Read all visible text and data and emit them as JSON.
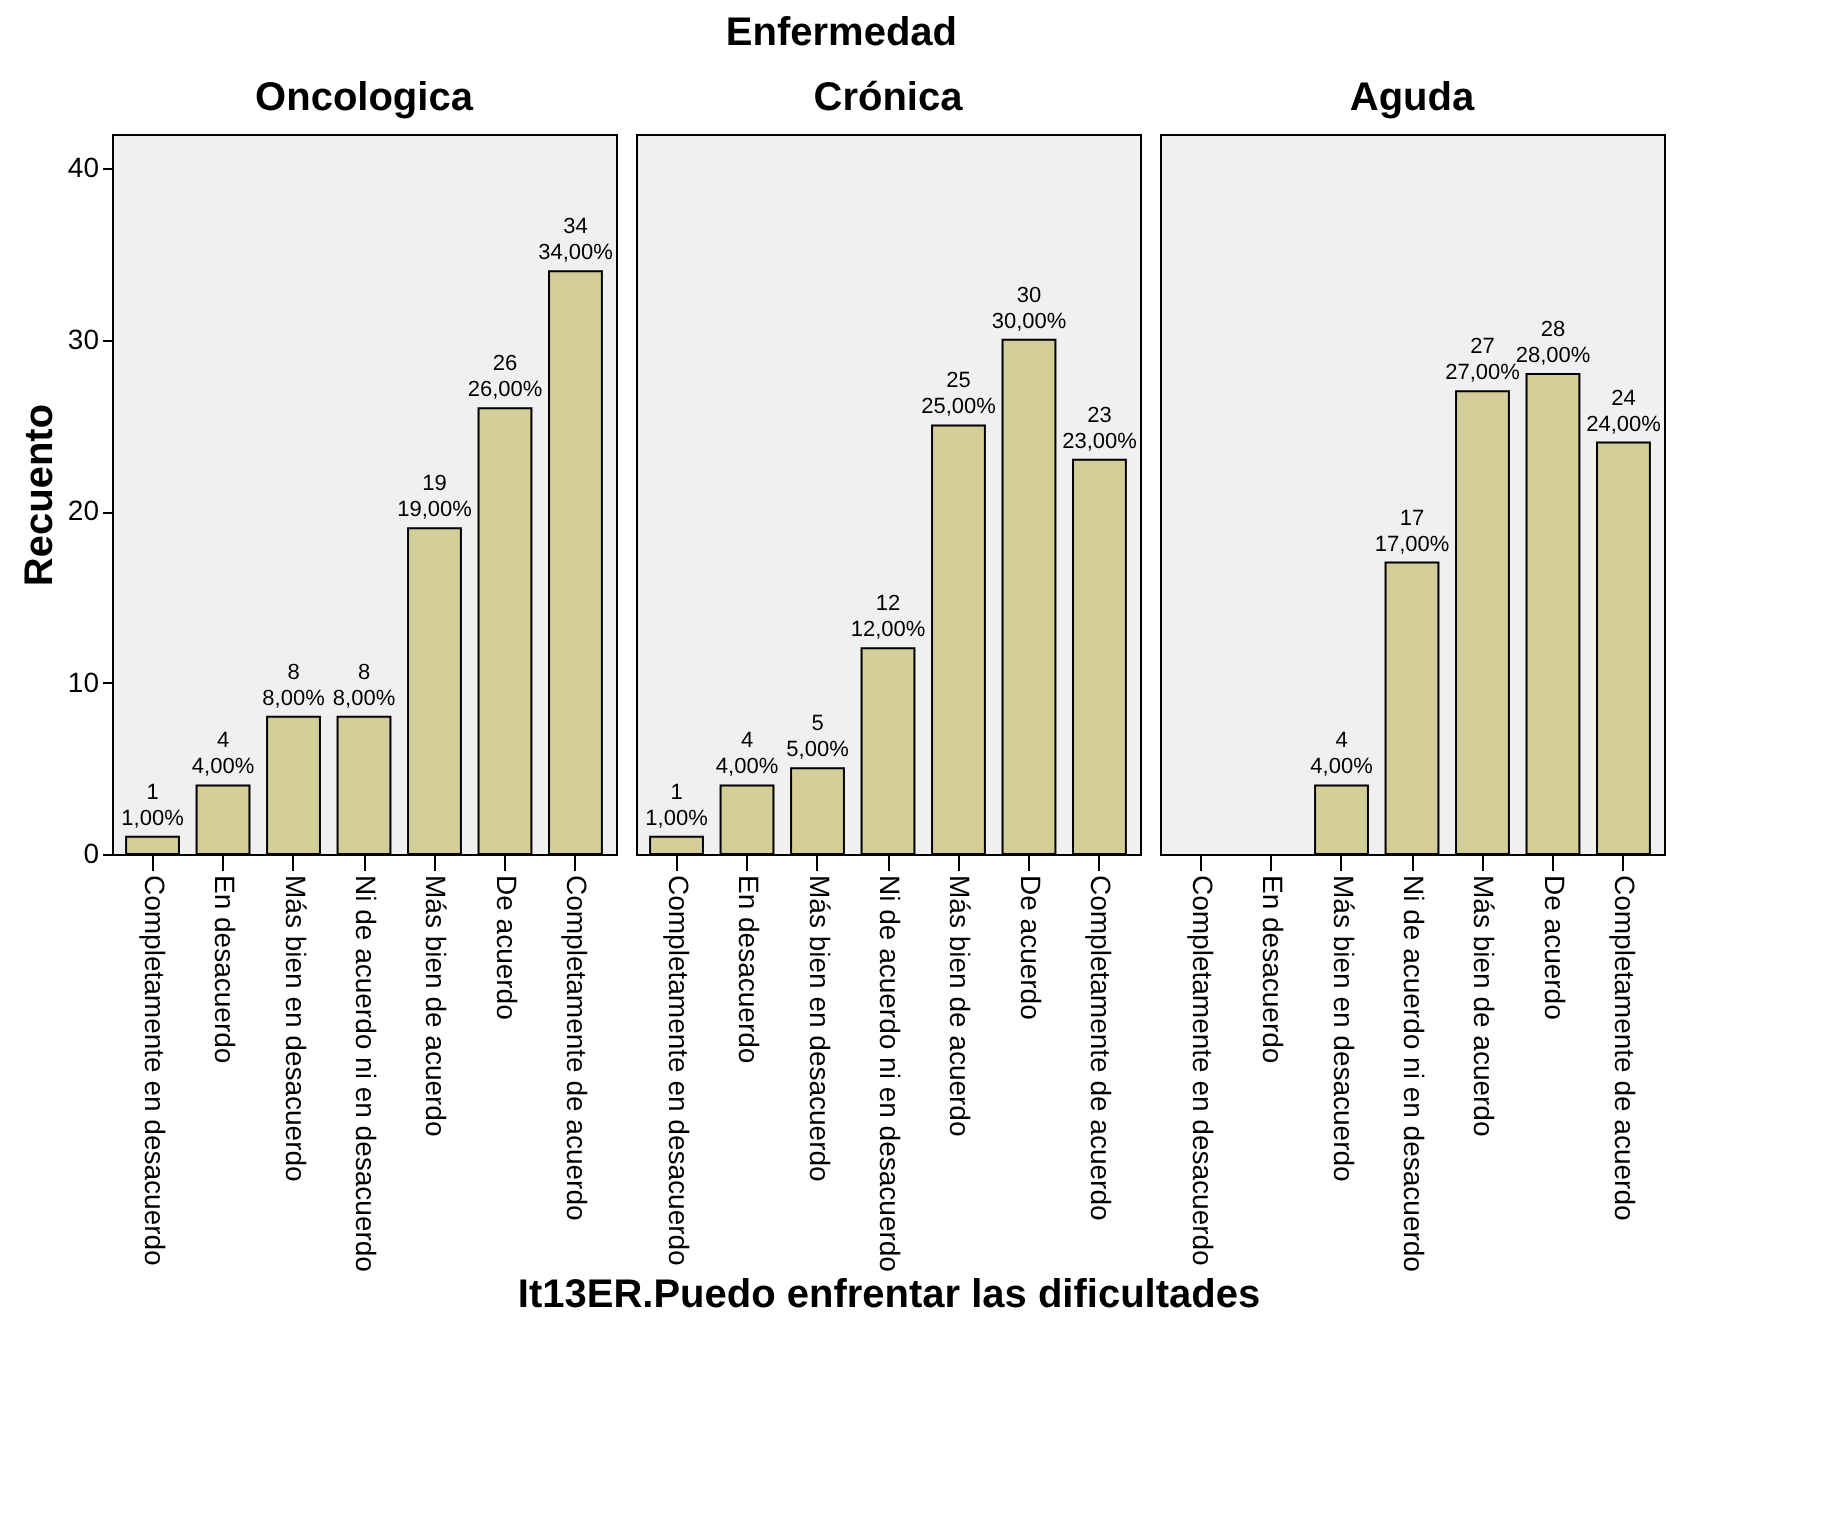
{
  "chart_data": [
    {
      "type": "bar",
      "title": "Oncologica",
      "ylabel": "Recuento",
      "categories": [
        "Completamente en desacuerdo",
        "En desacuerdo",
        "Más bien en desacuerdo",
        "Ni de acuerdo ni en desacuerdo",
        "Más bien de acuerdo",
        "De acuerdo",
        "Completamente de acuerdo"
      ],
      "values": [
        1,
        4,
        8,
        8,
        19,
        26,
        34
      ],
      "color": "#d3ce97",
      "value_labels": [
        "1 1,00%",
        "4 4,00%",
        "8 8,00%",
        "8 8,00%",
        "19 19,00%",
        "26 26,00%",
        "34 34,00%"
      ],
      "ylim": [
        0,
        42
      ],
      "yticks": [
        0,
        10,
        20,
        30,
        40
      ],
      "grid": false
    },
    {
      "type": "bar",
      "title": "Crónica",
      "xlabel": "It13ER.Puedo  enfrentar  las  dificultades",
      "annotations": [
        "Enfermedad"
      ],
      "categories": [
        "Completamente en desacuerdo",
        "En desacuerdo",
        "Más bien en desacuerdo",
        "Ni de acuerdo ni en desacuerdo",
        "Más bien de acuerdo",
        "De acuerdo",
        "Completamente de acuerdo"
      ],
      "values": [
        1,
        4,
        5,
        12,
        25,
        30,
        23
      ],
      "color": "#d3ce97",
      "value_labels": [
        "1 1,00%",
        "4 4,00%",
        "5 5,00%",
        "12 12,00%",
        "25 25,00%",
        "30 30,00%",
        "23 23,00%"
      ],
      "ylim": [
        0,
        42
      ],
      "tick_labels": "x",
      "grid": false
    },
    {
      "type": "bar",
      "title": "Aguda",
      "categories": [
        "Completamente en desacuerdo",
        "En desacuerdo",
        "Más bien en desacuerdo",
        "Ni de acuerdo ni en desacuerdo",
        "Más bien de acuerdo",
        "De acuerdo",
        "Completamente de acuerdo"
      ],
      "values": [
        null,
        null,
        4,
        17,
        27,
        28,
        24
      ],
      "color": "#d3ce97",
      "value_labels": [
        null,
        null,
        "4 4,00%",
        "17 17,00%",
        "27 27,00%",
        "28 28,00%",
        "24 24,00%"
      ],
      "ylim": [
        0,
        42
      ],
      "tick_labels": "x",
      "grid": false
    }
  ]
}
